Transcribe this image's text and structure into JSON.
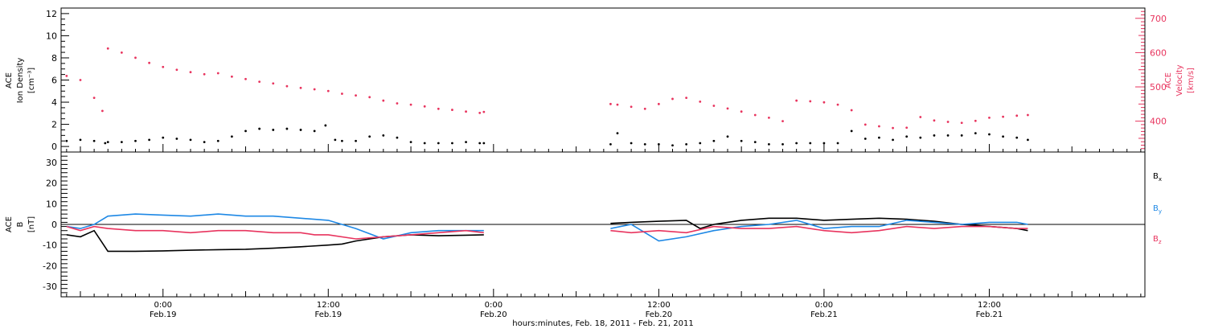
{
  "x_axis": {
    "label": "hours:minutes, Feb. 18, 2011 - Feb. 21, 2011",
    "tick_labels": [
      {
        "time": "0:00",
        "date": "Feb.19",
        "hours": 24
      },
      {
        "time": "12:00",
        "date": "Feb.19",
        "hours": 36
      },
      {
        "time": "0:00",
        "date": "Feb.20",
        "hours": 48
      },
      {
        "time": "12:00",
        "date": "Feb.20",
        "hours": 60
      },
      {
        "time": "0:00",
        "date": "Feb.21",
        "hours": 72
      },
      {
        "time": "12:00",
        "date": "Feb.21",
        "hours": 84
      }
    ],
    "range_hours": [
      16.6,
      95.3
    ]
  },
  "panel_top": {
    "left_label": [
      "ACE",
      "Ion Density",
      "[cm⁻³]"
    ],
    "right_label": [
      "ACE",
      "Velocity",
      "[km/s]"
    ],
    "left_ticks": [
      "0",
      "2",
      "4",
      "6",
      "8",
      "10",
      "12"
    ],
    "right_ticks": [
      "400",
      "500",
      "600",
      "700"
    ]
  },
  "panel_bottom": {
    "left_label": [
      "ACE",
      "B",
      "[nT]"
    ],
    "left_ticks": [
      "-30",
      "-20",
      "-10",
      "0",
      "10",
      "20",
      "30"
    ],
    "legend": [
      "Bx",
      "By",
      "Bz"
    ]
  },
  "colors": {
    "density": "#000000",
    "velocity": "#e8345e",
    "bx": "#000000",
    "by": "#1e88e5",
    "bz": "#e8345e",
    "axis": "#000000"
  },
  "chart_data": [
    {
      "type": "scatter",
      "x_units": "hours since 2011-02-18 00:00 UT",
      "y_left": {
        "ylim": [
          -0.5,
          12.5
        ]
      },
      "y_right": {
        "ylim": [
          310,
          730
        ]
      },
      "series": [
        {
          "axis": "left",
          "points": [
            [
              17,
              0.5
            ],
            [
              18,
              0.6
            ],
            [
              19,
              0.5
            ],
            [
              19.8,
              0.3
            ],
            [
              20,
              0.4
            ],
            [
              21,
              0.4
            ],
            [
              22,
              0.5
            ],
            [
              23,
              0.6
            ],
            [
              24,
              0.8
            ],
            [
              25,
              0.7
            ],
            [
              26,
              0.6
            ],
            [
              27,
              0.4
            ],
            [
              28,
              0.5
            ],
            [
              29,
              0.9
            ],
            [
              30,
              1.4
            ],
            [
              31,
              1.6
            ],
            [
              32,
              1.5
            ],
            [
              33,
              1.6
            ],
            [
              34,
              1.5
            ],
            [
              35,
              1.4
            ],
            [
              35.8,
              1.9
            ],
            [
              36.5,
              0.6
            ],
            [
              37,
              0.5
            ],
            [
              38,
              0.5
            ],
            [
              39,
              0.9
            ],
            [
              40,
              1.0
            ],
            [
              41,
              0.8
            ],
            [
              42,
              0.4
            ],
            [
              43,
              0.3
            ],
            [
              44,
              0.3
            ],
            [
              45,
              0.3
            ],
            [
              46,
              0.4
            ],
            [
              47,
              0.3
            ],
            [
              47.3,
              0.3
            ],
            [
              56.5,
              0.2
            ],
            [
              57,
              1.2
            ],
            [
              58,
              0.3
            ],
            [
              59,
              0.2
            ],
            [
              60,
              0.2
            ],
            [
              61,
              0.1
            ],
            [
              62,
              0.2
            ],
            [
              63,
              0.3
            ],
            [
              64,
              0.5
            ],
            [
              65,
              0.9
            ],
            [
              66,
              0.5
            ],
            [
              67,
              0.4
            ],
            [
              68,
              0.2
            ],
            [
              69,
              0.2
            ],
            [
              70,
              0.3
            ],
            [
              71,
              0.3
            ],
            [
              72,
              0.3
            ],
            [
              73,
              0.3
            ],
            [
              74,
              1.4
            ],
            [
              75,
              0.7
            ],
            [
              76,
              0.8
            ],
            [
              77,
              0.6
            ],
            [
              78,
              0.9
            ],
            [
              79,
              0.8
            ],
            [
              80,
              1.0
            ],
            [
              81,
              1.0
            ],
            [
              82,
              1.0
            ],
            [
              83,
              1.2
            ],
            [
              84,
              1.1
            ],
            [
              85,
              0.9
            ],
            [
              86,
              0.8
            ],
            [
              86.8,
              0.6
            ]
          ]
        },
        {
          "axis": "right",
          "points": [
            [
              17,
              532
            ],
            [
              18,
              520
            ],
            [
              19,
              468
            ],
            [
              19.6,
              430
            ],
            [
              20,
              612
            ],
            [
              21,
              600
            ],
            [
              22,
              585
            ],
            [
              23,
              570
            ],
            [
              24,
              558
            ],
            [
              25,
              550
            ],
            [
              26,
              543
            ],
            [
              27,
              537
            ],
            [
              28,
              540
            ],
            [
              29,
              530
            ],
            [
              30,
              523
            ],
            [
              31,
              515
            ],
            [
              32,
              510
            ],
            [
              33,
              502
            ],
            [
              34,
              497
            ],
            [
              35,
              493
            ],
            [
              36,
              488
            ],
            [
              37,
              480
            ],
            [
              38,
              475
            ],
            [
              39,
              470
            ],
            [
              40,
              460
            ],
            [
              41,
              452
            ],
            [
              42,
              448
            ],
            [
              43,
              443
            ],
            [
              44,
              436
            ],
            [
              45,
              433
            ],
            [
              46,
              428
            ],
            [
              47,
              424
            ],
            [
              47.3,
              427
            ],
            [
              56.5,
              450
            ],
            [
              57,
              448
            ],
            [
              58,
              442
            ],
            [
              59,
              436
            ],
            [
              60,
              450
            ],
            [
              61,
              465
            ],
            [
              62,
              468
            ],
            [
              63,
              457
            ],
            [
              64,
              445
            ],
            [
              65,
              437
            ],
            [
              66,
              428
            ],
            [
              67,
              418
            ],
            [
              68,
              410
            ],
            [
              69,
              400
            ],
            [
              70,
              460
            ],
            [
              71,
              458
            ],
            [
              72,
              455
            ],
            [
              73,
              448
            ],
            [
              74,
              432
            ],
            [
              75,
              390
            ],
            [
              76,
              385
            ],
            [
              77,
              380
            ],
            [
              78,
              381
            ],
            [
              79,
              412
            ],
            [
              80,
              402
            ],
            [
              81,
              398
            ],
            [
              82,
              395
            ],
            [
              83,
              401
            ],
            [
              84,
              410
            ],
            [
              85,
              413
            ],
            [
              86,
              416
            ],
            [
              86.8,
              418
            ]
          ]
        }
      ]
    },
    {
      "type": "line",
      "x_units": "hours since 2011-02-18 00:00 UT",
      "ylim": [
        -35,
        35
      ],
      "series": [
        {
          "name": "Bx",
          "points": [
            [
              17,
              -5
            ],
            [
              18,
              -6
            ],
            [
              19,
              -3
            ],
            [
              20,
              -13
            ],
            [
              22,
              -13
            ],
            [
              24,
              -12.8
            ],
            [
              26,
              -12.5
            ],
            [
              28,
              -12.2
            ],
            [
              30,
              -12
            ],
            [
              32,
              -11.5
            ],
            [
              34,
              -10.8
            ],
            [
              36,
              -10
            ],
            [
              37,
              -9.5
            ],
            [
              38,
              -8
            ],
            [
              40,
              -6
            ],
            [
              42,
              -5
            ],
            [
              44,
              -5.5
            ],
            [
              46,
              -5.2
            ],
            [
              47.3,
              -5
            ],
            [
              56.5,
              0.5
            ],
            [
              58,
              1
            ],
            [
              60,
              1.5
            ],
            [
              62,
              2
            ],
            [
              63,
              -2
            ],
            [
              64,
              0
            ],
            [
              66,
              2
            ],
            [
              68,
              3
            ],
            [
              70,
              3
            ],
            [
              72,
              2
            ],
            [
              74,
              2.5
            ],
            [
              76,
              3
            ],
            [
              78,
              2.5
            ],
            [
              80,
              1.5
            ],
            [
              82,
              0
            ],
            [
              84,
              -1
            ],
            [
              86,
              -2
            ],
            [
              86.8,
              -3
            ]
          ]
        },
        {
          "name": "By",
          "points": [
            [
              17,
              -1
            ],
            [
              18,
              -2
            ],
            [
              19,
              0
            ],
            [
              20,
              4
            ],
            [
              22,
              5
            ],
            [
              24,
              4.5
            ],
            [
              26,
              4
            ],
            [
              28,
              5
            ],
            [
              30,
              4
            ],
            [
              32,
              4
            ],
            [
              34,
              3
            ],
            [
              36,
              2
            ],
            [
              38,
              -2
            ],
            [
              40,
              -7
            ],
            [
              42,
              -4
            ],
            [
              44,
              -3
            ],
            [
              46,
              -3
            ],
            [
              47.3,
              -3
            ],
            [
              56.5,
              -2
            ],
            [
              58,
              0
            ],
            [
              60,
              -8
            ],
            [
              62,
              -6
            ],
            [
              64,
              -3
            ],
            [
              66,
              -1
            ],
            [
              68,
              0
            ],
            [
              70,
              2
            ],
            [
              72,
              -2
            ],
            [
              74,
              -1
            ],
            [
              76,
              -1
            ],
            [
              78,
              2
            ],
            [
              80,
              1
            ],
            [
              82,
              0
            ],
            [
              84,
              1
            ],
            [
              86,
              1
            ],
            [
              86.8,
              0
            ]
          ]
        },
        {
          "name": "Bz",
          "points": [
            [
              17,
              -1
            ],
            [
              18,
              -3
            ],
            [
              19,
              -1
            ],
            [
              20,
              -2
            ],
            [
              22,
              -3
            ],
            [
              24,
              -3
            ],
            [
              26,
              -4
            ],
            [
              28,
              -3
            ],
            [
              30,
              -3
            ],
            [
              32,
              -4
            ],
            [
              34,
              -4
            ],
            [
              35,
              -5
            ],
            [
              36,
              -5
            ],
            [
              38,
              -7
            ],
            [
              40,
              -6
            ],
            [
              42,
              -5
            ],
            [
              44,
              -4
            ],
            [
              46,
              -3
            ],
            [
              47.3,
              -4
            ],
            [
              56.5,
              -3
            ],
            [
              58,
              -4
            ],
            [
              60,
              -3
            ],
            [
              62,
              -4
            ],
            [
              64,
              -1
            ],
            [
              66,
              -2
            ],
            [
              68,
              -2
            ],
            [
              70,
              -1
            ],
            [
              72,
              -3
            ],
            [
              74,
              -4
            ],
            [
              76,
              -3
            ],
            [
              78,
              -1
            ],
            [
              80,
              -2
            ],
            [
              82,
              -1
            ],
            [
              84,
              -1
            ],
            [
              86,
              -2
            ],
            [
              86.8,
              -2
            ]
          ]
        }
      ]
    }
  ]
}
